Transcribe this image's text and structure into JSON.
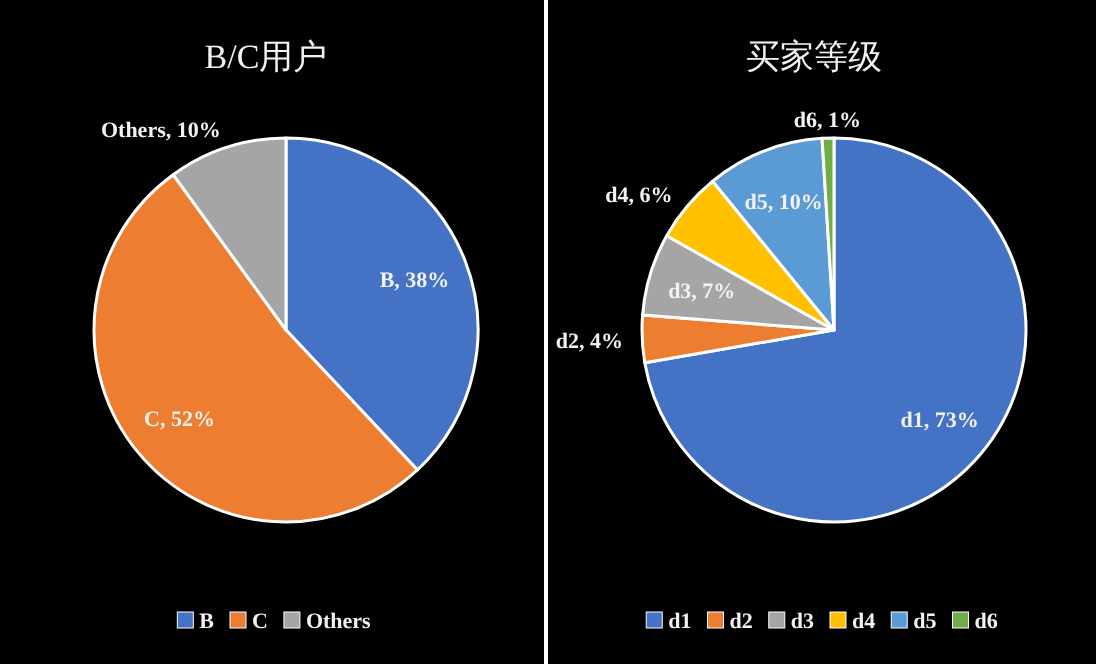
{
  "chart_data": [
    {
      "type": "pie",
      "title": "B/C用户",
      "categories": [
        "B",
        "C",
        "Others"
      ],
      "values": [
        38,
        52,
        10
      ],
      "colors": [
        "#4472c4",
        "#ed7d31",
        "#a5a5a5"
      ],
      "value_labels": [
        "B, 38%",
        "C, 52%",
        "Others, 10%"
      ],
      "legend": "bottom"
    },
    {
      "type": "pie",
      "title": "买家等级",
      "categories": [
        "d1",
        "d2",
        "d3",
        "d4",
        "d5",
        "d6"
      ],
      "values": [
        73,
        4,
        7,
        6,
        10,
        1
      ],
      "colors": [
        "#4472c4",
        "#ed7d31",
        "#a5a5a5",
        "#ffc000",
        "#5b9bd5",
        "#70ad47"
      ],
      "value_labels": [
        "d1, 73%",
        "d2, 4%",
        "d3, 7%",
        "d4, 6%",
        "d5, 10%",
        "d6, 1%"
      ],
      "legend": "bottom"
    }
  ]
}
